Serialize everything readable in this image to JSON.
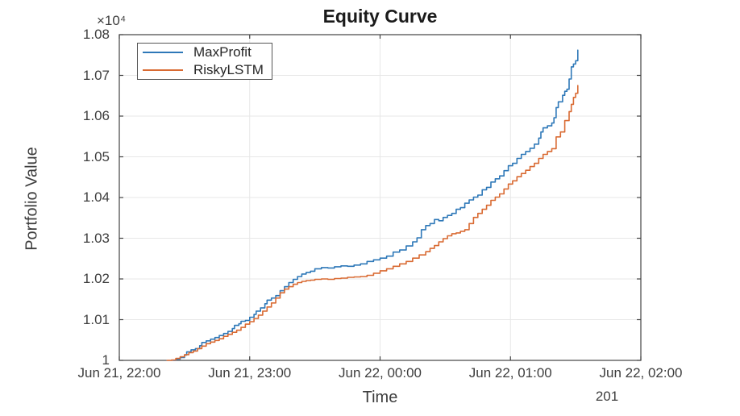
{
  "title": "Equity Curve",
  "y_axis": {
    "label": "Portfolio Value",
    "exponent_label": "×10⁴",
    "ticks": [
      {
        "label": "1",
        "value": 1.0
      },
      {
        "label": "1.01",
        "value": 1.01
      },
      {
        "label": "1.02",
        "value": 1.02
      },
      {
        "label": "1.03",
        "value": 1.03
      },
      {
        "label": "1.04",
        "value": 1.04
      },
      {
        "label": "1.05",
        "value": 1.05
      },
      {
        "label": "1.06",
        "value": 1.06
      },
      {
        "label": "1.07",
        "value": 1.07
      },
      {
        "label": "1.08",
        "value": 1.08
      }
    ]
  },
  "x_axis": {
    "label": "Time",
    "secondary_label": "201",
    "ticks": [
      {
        "label": "Jun 21, 22:00",
        "minutes": 0
      },
      {
        "label": "Jun 21, 23:00",
        "minutes": 60
      },
      {
        "label": "Jun 22, 00:00",
        "minutes": 120
      },
      {
        "label": "Jun 22, 01:00",
        "minutes": 180
      },
      {
        "label": "Jun 22, 02:00",
        "minutes": 240
      }
    ]
  },
  "legend": {
    "items": [
      {
        "label": "MaxProfit",
        "color": "#2e78b8"
      },
      {
        "label": "RiskyLSTM",
        "color": "#d96a32"
      }
    ]
  },
  "colors": {
    "grid": "#e7e7e7",
    "axis": "#424242",
    "text": "#3d3d3d",
    "blue": "#2e78b8",
    "orange": "#d96a32"
  },
  "chart_data": {
    "type": "line",
    "title": "Equity Curve",
    "xlabel": "Time",
    "ylabel": "Portfolio Value",
    "value_scale": "×10⁴",
    "x_unit": "minutes after Jun 21, 22:00",
    "xlim_minutes": [
      0,
      240
    ],
    "ylim": [
      1.0,
      1.08
    ],
    "grid": true,
    "legend_position": "top-left-inside",
    "series": [
      {
        "name": "MaxProfit",
        "color": "#2e78b8",
        "points": [
          [
            25,
            1.0
          ],
          [
            26,
            1.0003
          ],
          [
            28,
            1.0007
          ],
          [
            30,
            1.0013
          ],
          [
            31,
            1.0021
          ],
          [
            33,
            1.0026
          ],
          [
            35,
            1.0029
          ],
          [
            37,
            1.0036
          ],
          [
            38,
            1.0044
          ],
          [
            40,
            1.0048
          ],
          [
            42,
            1.0052
          ],
          [
            44,
            1.0056
          ],
          [
            46,
            1.0061
          ],
          [
            48,
            1.0066
          ],
          [
            50,
            1.0071
          ],
          [
            52,
            1.0078
          ],
          [
            53,
            1.0086
          ],
          [
            55,
            1.009
          ],
          [
            56,
            1.0096
          ],
          [
            58,
            1.0098
          ],
          [
            60,
            1.0106
          ],
          [
            62,
            1.0113
          ],
          [
            63,
            1.0121
          ],
          [
            65,
            1.0129
          ],
          [
            67,
            1.0139
          ],
          [
            68,
            1.0148
          ],
          [
            70,
            1.0153
          ],
          [
            72,
            1.0159
          ],
          [
            74,
            1.0171
          ],
          [
            76,
            1.0181
          ],
          [
            78,
            1.0191
          ],
          [
            80,
            1.0199
          ],
          [
            82,
            1.0206
          ],
          [
            84,
            1.0212
          ],
          [
            86,
            1.0216
          ],
          [
            88,
            1.0219
          ],
          [
            90,
            1.0225
          ],
          [
            93,
            1.0228
          ],
          [
            96,
            1.0227
          ],
          [
            99,
            1.023
          ],
          [
            102,
            1.0232
          ],
          [
            105,
            1.0231
          ],
          [
            108,
            1.0234
          ],
          [
            111,
            1.0237
          ],
          [
            114,
            1.0243
          ],
          [
            117,
            1.0247
          ],
          [
            120,
            1.0251
          ],
          [
            123,
            1.0256
          ],
          [
            126,
            1.0266
          ],
          [
            129,
            1.0271
          ],
          [
            132,
            1.0281
          ],
          [
            135,
            1.0291
          ],
          [
            137,
            1.0301
          ],
          [
            139,
            1.0321
          ],
          [
            141,
            1.0331
          ],
          [
            143,
            1.0336
          ],
          [
            145,
            1.0346
          ],
          [
            147,
            1.0343
          ],
          [
            149,
            1.0351
          ],
          [
            151,
            1.0356
          ],
          [
            153,
            1.0361
          ],
          [
            155,
            1.0371
          ],
          [
            157,
            1.0375
          ],
          [
            159,
            1.0386
          ],
          [
            161,
            1.0394
          ],
          [
            163,
            1.0401
          ],
          [
            165,
            1.0406
          ],
          [
            167,
            1.0419
          ],
          [
            169,
            1.0425
          ],
          [
            171,
            1.0438
          ],
          [
            173,
            1.0446
          ],
          [
            175,
            1.0453
          ],
          [
            177,
            1.0466
          ],
          [
            179,
            1.0478
          ],
          [
            181,
            1.0484
          ],
          [
            183,
            1.0496
          ],
          [
            185,
            1.0506
          ],
          [
            187,
            1.0513
          ],
          [
            189,
            1.0521
          ],
          [
            191,
            1.0531
          ],
          [
            193,
            1.0546
          ],
          [
            194,
            1.0561
          ],
          [
            195,
            1.0571
          ],
          [
            197,
            1.0576
          ],
          [
            199,
            1.0583
          ],
          [
            200,
            1.0596
          ],
          [
            201,
            1.0621
          ],
          [
            202,
            1.0635
          ],
          [
            204,
            1.0651
          ],
          [
            205,
            1.0661
          ],
          [
            206,
            1.0666
          ],
          [
            207,
            1.0691
          ],
          [
            208,
            1.0721
          ],
          [
            209,
            1.0728
          ],
          [
            210,
            1.0736
          ],
          [
            211,
            1.0762
          ]
        ]
      },
      {
        "name": "RiskyLSTM",
        "color": "#d96a32",
        "points": [
          [
            22,
            1.0
          ],
          [
            24,
            1.0001
          ],
          [
            26,
            1.0005
          ],
          [
            28,
            1.0009
          ],
          [
            30,
            1.0014
          ],
          [
            32,
            1.0019
          ],
          [
            34,
            1.0023
          ],
          [
            36,
            1.0029
          ],
          [
            38,
            1.0035
          ],
          [
            40,
            1.0041
          ],
          [
            42,
            1.0045
          ],
          [
            44,
            1.0049
          ],
          [
            46,
            1.0053
          ],
          [
            48,
            1.0059
          ],
          [
            50,
            1.0064
          ],
          [
            52,
            1.0069
          ],
          [
            54,
            1.0074
          ],
          [
            56,
            1.0081
          ],
          [
            58,
            1.0089
          ],
          [
            60,
            1.0095
          ],
          [
            62,
            1.0103
          ],
          [
            64,
            1.0111
          ],
          [
            66,
            1.0121
          ],
          [
            68,
            1.0131
          ],
          [
            70,
            1.0141
          ],
          [
            72,
            1.0153
          ],
          [
            74,
            1.0166
          ],
          [
            76,
            1.0175
          ],
          [
            78,
            1.0181
          ],
          [
            80,
            1.0187
          ],
          [
            82,
            1.0191
          ],
          [
            84,
            1.0194
          ],
          [
            86,
            1.0196
          ],
          [
            88,
            1.0197
          ],
          [
            90,
            1.0199
          ],
          [
            93,
            1.02
          ],
          [
            96,
            1.0199
          ],
          [
            99,
            1.0201
          ],
          [
            102,
            1.0202
          ],
          [
            105,
            1.0204
          ],
          [
            108,
            1.0205
          ],
          [
            111,
            1.0206
          ],
          [
            114,
            1.0209
          ],
          [
            117,
            1.0214
          ],
          [
            120,
            1.022
          ],
          [
            123,
            1.0225
          ],
          [
            126,
            1.0231
          ],
          [
            129,
            1.0237
          ],
          [
            132,
            1.0243
          ],
          [
            135,
            1.0251
          ],
          [
            138,
            1.0259
          ],
          [
            141,
            1.0267
          ],
          [
            143,
            1.0275
          ],
          [
            145,
            1.0282
          ],
          [
            147,
            1.0291
          ],
          [
            149,
            1.0299
          ],
          [
            151,
            1.0306
          ],
          [
            153,
            1.0311
          ],
          [
            155,
            1.0313
          ],
          [
            157,
            1.0317
          ],
          [
            159,
            1.0321
          ],
          [
            161,
            1.0336
          ],
          [
            163,
            1.0351
          ],
          [
            165,
            1.0361
          ],
          [
            167,
            1.0371
          ],
          [
            169,
            1.0381
          ],
          [
            171,
            1.0393
          ],
          [
            173,
            1.0401
          ],
          [
            175,
            1.0409
          ],
          [
            177,
            1.0421
          ],
          [
            179,
            1.0433
          ],
          [
            181,
            1.0441
          ],
          [
            183,
            1.0451
          ],
          [
            185,
            1.0459
          ],
          [
            187,
            1.0467
          ],
          [
            189,
            1.0476
          ],
          [
            191,
            1.0484
          ],
          [
            193,
            1.0496
          ],
          [
            195,
            1.0506
          ],
          [
            197,
            1.0513
          ],
          [
            199,
            1.052
          ],
          [
            201,
            1.0549
          ],
          [
            203,
            1.0561
          ],
          [
            205,
            1.0589
          ],
          [
            207,
            1.0611
          ],
          [
            208,
            1.0629
          ],
          [
            209,
            1.0646
          ],
          [
            210,
            1.0656
          ],
          [
            211,
            1.0675
          ]
        ]
      }
    ]
  }
}
